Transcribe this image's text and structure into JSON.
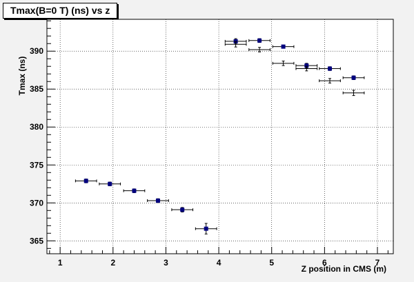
{
  "chart_data": {
    "type": "scatter",
    "title": "Tmax(B=0 T) (ns) vs z",
    "xlabel": "Z position in CMS (m)",
    "ylabel": "Tmax (ns)",
    "xlim": [
      0.75,
      7.3
    ],
    "ylim": [
      363.3,
      394.2
    ],
    "xticks": [
      1,
      2,
      3,
      4,
      5,
      6,
      7
    ],
    "yticks": [
      365,
      370,
      375,
      380,
      385,
      390
    ],
    "grid": true,
    "series": [
      {
        "marker": "filled-square",
        "color": "#00007f",
        "points": [
          {
            "x": 1.49,
            "y": 372.9,
            "xerr": 0.2,
            "yerr": 0.25
          },
          {
            "x": 1.94,
            "y": 372.5,
            "xerr": 0.2,
            "yerr": 0.25
          },
          {
            "x": 2.4,
            "y": 371.6,
            "xerr": 0.2,
            "yerr": 0.25
          },
          {
            "x": 2.85,
            "y": 370.3,
            "xerr": 0.2,
            "yerr": 0.25
          },
          {
            "x": 3.31,
            "y": 369.1,
            "xerr": 0.2,
            "yerr": 0.3
          },
          {
            "x": 3.76,
            "y": 366.6,
            "xerr": 0.2,
            "yerr": 0.7
          },
          {
            "x": 4.32,
            "y": 391.3,
            "xerr": 0.2,
            "yerr": 0.35
          },
          {
            "x": 4.77,
            "y": 391.4,
            "xerr": 0.2,
            "yerr": 0.25
          },
          {
            "x": 5.22,
            "y": 390.6,
            "xerr": 0.2,
            "yerr": 0.2
          },
          {
            "x": 5.66,
            "y": 388.1,
            "xerr": 0.2,
            "yerr": 0.3
          },
          {
            "x": 6.1,
            "y": 387.7,
            "xerr": 0.2,
            "yerr": 0.25
          },
          {
            "x": 6.55,
            "y": 386.5,
            "xerr": 0.2,
            "yerr": 0.25
          }
        ]
      },
      {
        "marker": "cross",
        "color": "#000000",
        "points": [
          {
            "x": 4.32,
            "y": 390.9,
            "xerr": 0.2,
            "yerr": 0.35
          },
          {
            "x": 4.77,
            "y": 390.2,
            "xerr": 0.2,
            "yerr": 0.3
          },
          {
            "x": 5.22,
            "y": 388.4,
            "xerr": 0.2,
            "yerr": 0.3
          },
          {
            "x": 5.66,
            "y": 387.7,
            "xerr": 0.2,
            "yerr": 0.3
          },
          {
            "x": 6.1,
            "y": 386.1,
            "xerr": 0.2,
            "yerr": 0.3
          },
          {
            "x": 6.55,
            "y": 384.5,
            "xerr": 0.2,
            "yerr": 0.35
          }
        ]
      }
    ]
  }
}
